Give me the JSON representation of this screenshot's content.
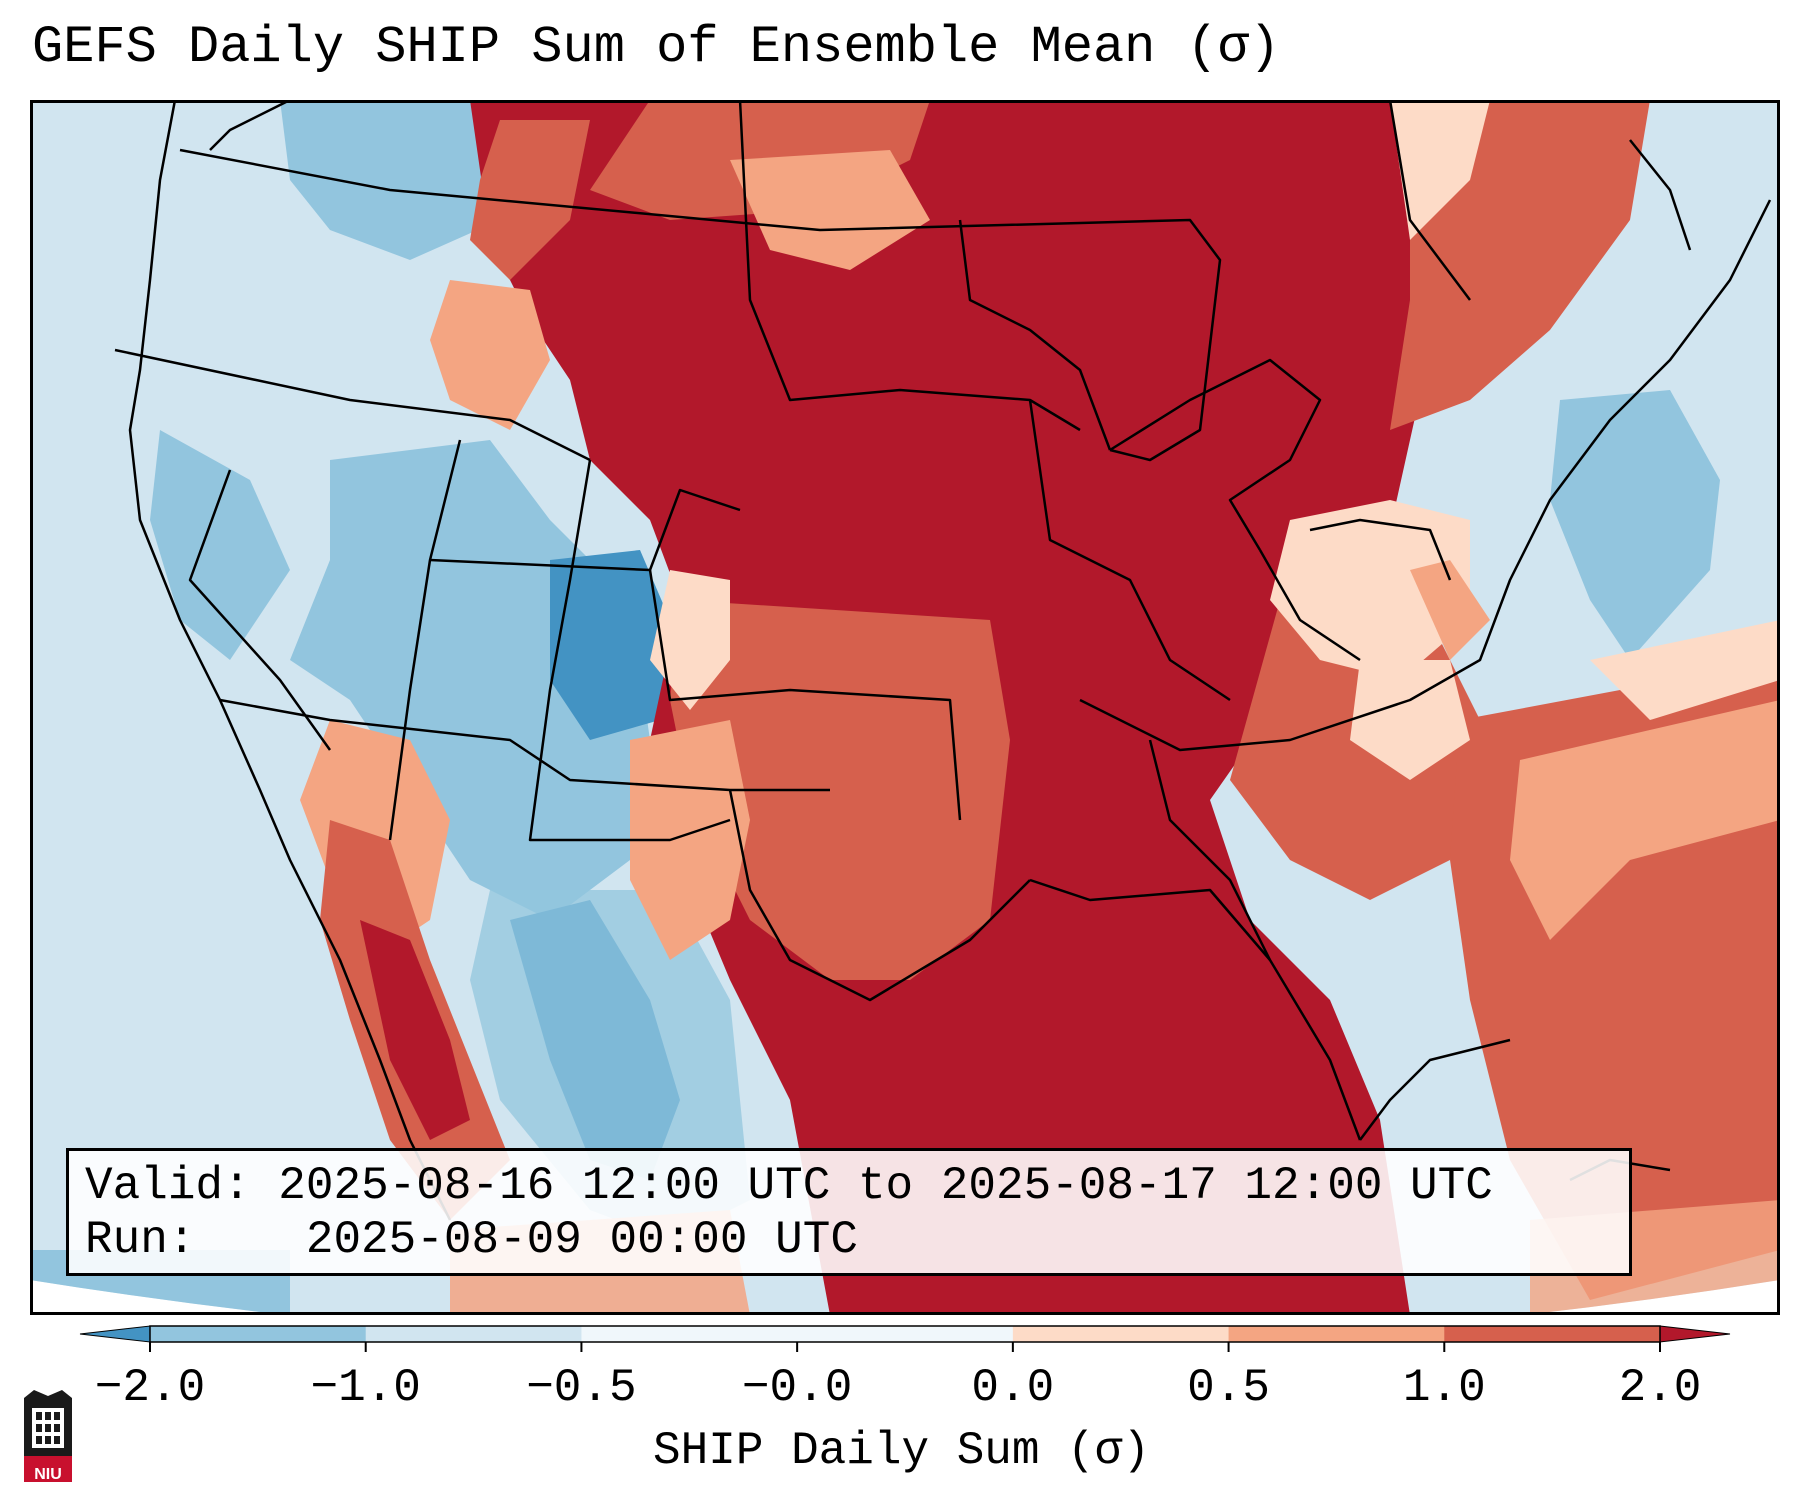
{
  "title": "GEFS Daily SHIP Sum of Ensemble Mean (σ)",
  "info": {
    "valid_label": "Valid:",
    "valid_value": "2025-08-16 12:00 UTC to 2025-08-17 12:00 UTC",
    "run_label": "Run:",
    "run_value": "2025-08-09 00:00 UTC"
  },
  "colorbar": {
    "label": "SHIP Daily Sum (σ)",
    "tick_labels": [
      "−2.0",
      "−1.0",
      "−0.5",
      "−0.0",
      "0.0",
      "0.5",
      "1.0",
      "2.0"
    ],
    "bin_colors": [
      "#4393c3",
      "#92c5de",
      "#d1e5f0",
      "#f0f7fb",
      "#fddbc7",
      "#f4a582",
      "#d6604d",
      "#b2182b"
    ],
    "extend": "both"
  },
  "colors": {
    "strong_negative": "#4393c3",
    "negative": "#92c5de",
    "weak_negative": "#d1e5f0",
    "weak_positive": "#fddbc7",
    "positive": "#f4a582",
    "strong_positive": "#d6604d",
    "very_strong_positive": "#b2182b"
  },
  "logo": {
    "text": "NIU"
  }
}
